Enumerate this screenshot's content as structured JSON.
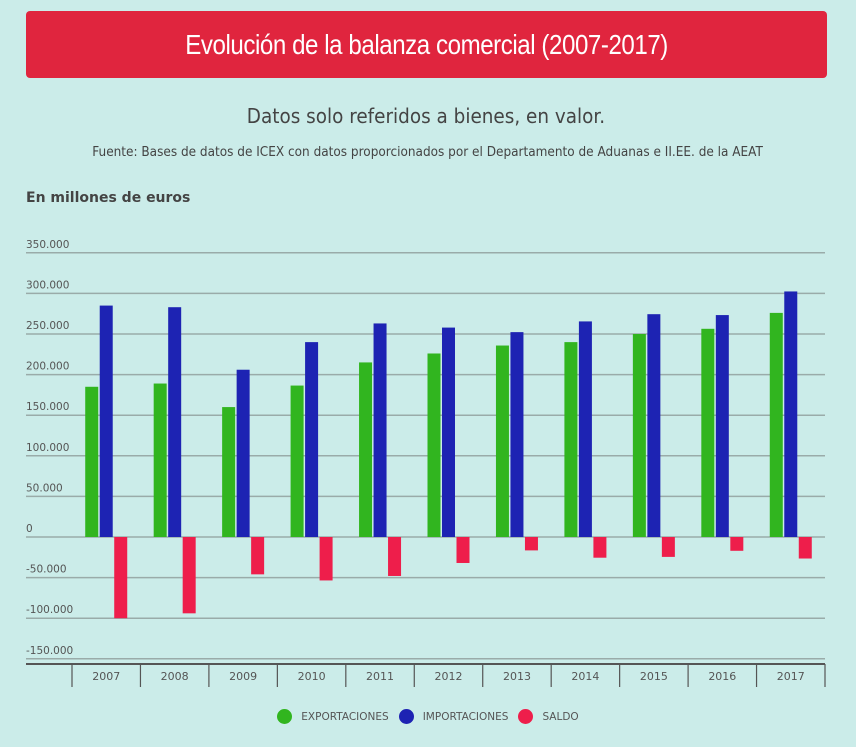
{
  "header": {
    "title": "Evolución de la balanza comercial (2007-2017)",
    "subtitle": "Datos solo referidos a bienes, en valor.",
    "source": "Fuente: Bases de datos de ICEX con datos proporcionados por el Departamento de Aduanas e II.EE. de la AEAT",
    "units": "En millones de euros"
  },
  "colors": {
    "background": "#cbece9",
    "title_bar": "#e0253e",
    "exportaciones": "#31b51f",
    "importaciones": "#1d23b3",
    "saldo": "#ee1e4b",
    "gridline": "#9aaba9",
    "axis": "#555555"
  },
  "chart_data": {
    "type": "bar",
    "title": "Evolución de la balanza comercial (2007-2017)",
    "subtitle": "Datos solo referidos a bienes, en valor.",
    "xlabel": "",
    "ylabel": "En millones de euros",
    "categories": [
      "2007",
      "2008",
      "2009",
      "2010",
      "2011",
      "2012",
      "2013",
      "2014",
      "2015",
      "2016",
      "2017"
    ],
    "series": [
      {
        "name": "EXPORTACIONES",
        "color": "#31b51f",
        "values": [
          185000,
          189000,
          160000,
          186500,
          215000,
          226000,
          235800,
          240000,
          250000,
          256400,
          276000
        ]
      },
      {
        "name": "IMPORTACIONES",
        "color": "#1d23b3",
        "values": [
          285000,
          283000,
          206000,
          240000,
          263000,
          257900,
          252300,
          265500,
          274400,
          273300,
          302400
        ]
      },
      {
        "name": "SALDO",
        "color": "#ee1e4b",
        "values": [
          -100000,
          -94000,
          -46000,
          -53500,
          -48000,
          -32000,
          -16500,
          -25500,
          -24500,
          -17000,
          -26500
        ]
      }
    ],
    "ylim": [
      -150000,
      350000
    ],
    "yticks": [
      350000,
      300000,
      250000,
      200000,
      150000,
      100000,
      50000,
      0,
      -50000,
      -100000,
      -150000
    ],
    "ytick_labels": [
      "350.000",
      "300.000",
      "250.000",
      "200.000",
      "150.000",
      "100.000",
      "50.000",
      "0",
      "-50.000",
      "-100.000",
      "-150.000"
    ],
    "grid": true,
    "legend": {
      "position": "bottom-center",
      "entries": [
        "EXPORTACIONES",
        "IMPORTACIONES",
        "SALDO"
      ]
    }
  }
}
